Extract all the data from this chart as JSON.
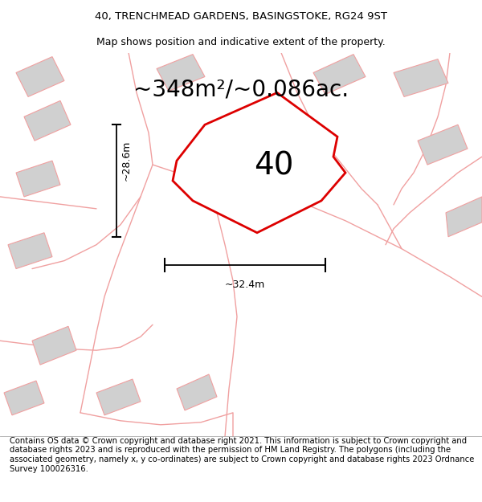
{
  "title_line1": "40, TRENCHMEAD GARDENS, BASINGSTOKE, RG24 9ST",
  "title_line2": "Map shows position and indicative extent of the property.",
  "area_text": "~348m²/~0.086ac.",
  "plot_number": "40",
  "dim_height": "~28.6m",
  "dim_width": "~32.4m",
  "footer_text": "Contains OS data © Crown copyright and database right 2021. This information is subject to Crown copyright and database rights 2023 and is reproduced with the permission of HM Land Registry. The polygons (including the associated geometry, namely x, y co-ordinates) are subject to Crown copyright and database rights 2023 Ordnance Survey 100026316.",
  "bg_color": "#ffffff",
  "map_bg": "#f0f0f0",
  "plot_color": "#dd0000",
  "light_red": "#f0a0a0",
  "gray_poly": "#d0d0d0",
  "title_fontsize": 9.5,
  "area_fontsize": 20,
  "number_fontsize": 28,
  "footer_fontsize": 7.2,
  "dim_fontsize": 9
}
